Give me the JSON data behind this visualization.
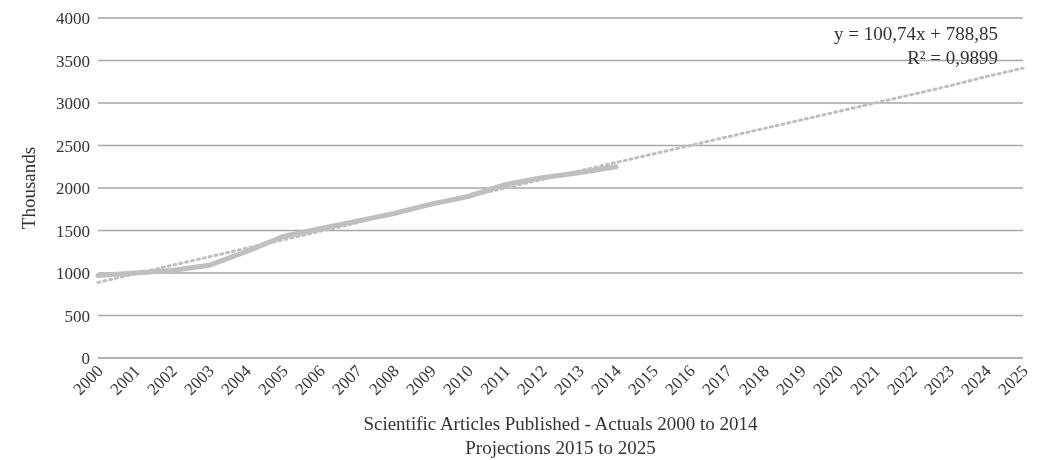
{
  "chart_data": {
    "type": "line",
    "ylabel": "Thousands",
    "xlabel": "Scientific Articles Published - Actuals 2000 to 2014\nProjections 2015 to 2025",
    "categories": [
      "2000",
      "2001",
      "2002",
      "2003",
      "2004",
      "2005",
      "2006",
      "2007",
      "2008",
      "2009",
      "2010",
      "2011",
      "2012",
      "2013",
      "2014",
      "2015",
      "2016",
      "2017",
      "2018",
      "2019",
      "2020",
      "2021",
      "2022",
      "2023",
      "2024",
      "2025"
    ],
    "series": [
      {
        "color": "#bfbfbf",
        "line_style": "solid",
        "values": [
          970,
          1000,
          1030,
          1090,
          1250,
          1430,
          1520,
          1610,
          1700,
          1810,
          1900,
          2040,
          2120,
          2180,
          2250,
          null,
          null,
          null,
          null,
          null,
          null,
          null,
          null,
          null,
          null,
          null
        ]
      },
      {
        "color": "#bfbfbf",
        "line_style": "dotted",
        "values": [
          890,
          990,
          1090,
          1190,
          1290,
          1390,
          1490,
          1590,
          1700,
          1800,
          1900,
          2000,
          2100,
          2200,
          2300,
          2400,
          2500,
          2600,
          2700,
          2800,
          2900,
          3000,
          3100,
          3200,
          3310,
          3410
        ]
      }
    ],
    "annotations": [
      "y = 100,74x + 788,85",
      "R² = 0,9899"
    ],
    "ylim": [
      0,
      4000
    ],
    "yticks": [
      0,
      500,
      1000,
      1500,
      2000,
      2500,
      3000,
      3500,
      4000
    ],
    "grid": "y",
    "legend": false,
    "marker": "none"
  }
}
